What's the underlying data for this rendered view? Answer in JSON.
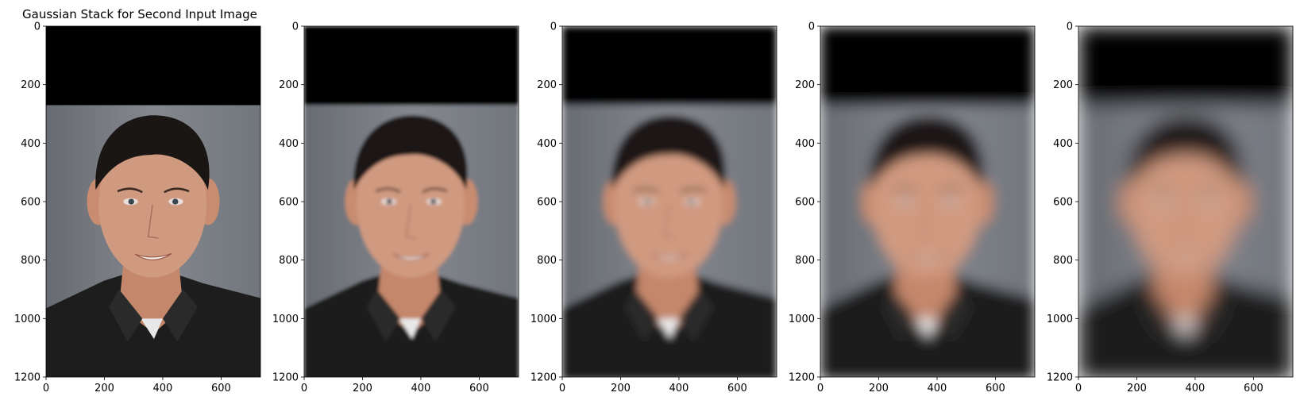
{
  "figure": {
    "title": "Gaussian Stack for Second Input Image"
  },
  "axes": {
    "x_ticks": [
      "0",
      "200",
      "400",
      "600"
    ],
    "y_ticks": [
      "0",
      "200",
      "400",
      "600",
      "800",
      "1000",
      "1200"
    ],
    "x_tick_values": [
      0,
      200,
      400,
      600
    ],
    "y_tick_values": [
      0,
      200,
      400,
      600,
      800,
      1000,
      1200
    ],
    "x_range": [
      0,
      735
    ],
    "y_range": [
      0,
      1200
    ]
  },
  "panels": [
    {
      "name": "level-1",
      "blur_level": 0
    },
    {
      "name": "level-2",
      "blur_level": 1
    },
    {
      "name": "level-3",
      "blur_level": 2
    },
    {
      "name": "level-4",
      "blur_level": 3
    },
    {
      "name": "level-5",
      "blur_level": 4
    }
  ],
  "image": {
    "description_colors": {
      "top_band": "#000000",
      "backdrop": "#7b7f86",
      "hair": "#1a1614",
      "skin": "#d09a80",
      "shirt": "#1d1d1d",
      "undershirt": "#e8e8e8"
    },
    "black_band_until_y": 270
  },
  "colors": {
    "axis": "#000000",
    "background": "#ffffff"
  }
}
